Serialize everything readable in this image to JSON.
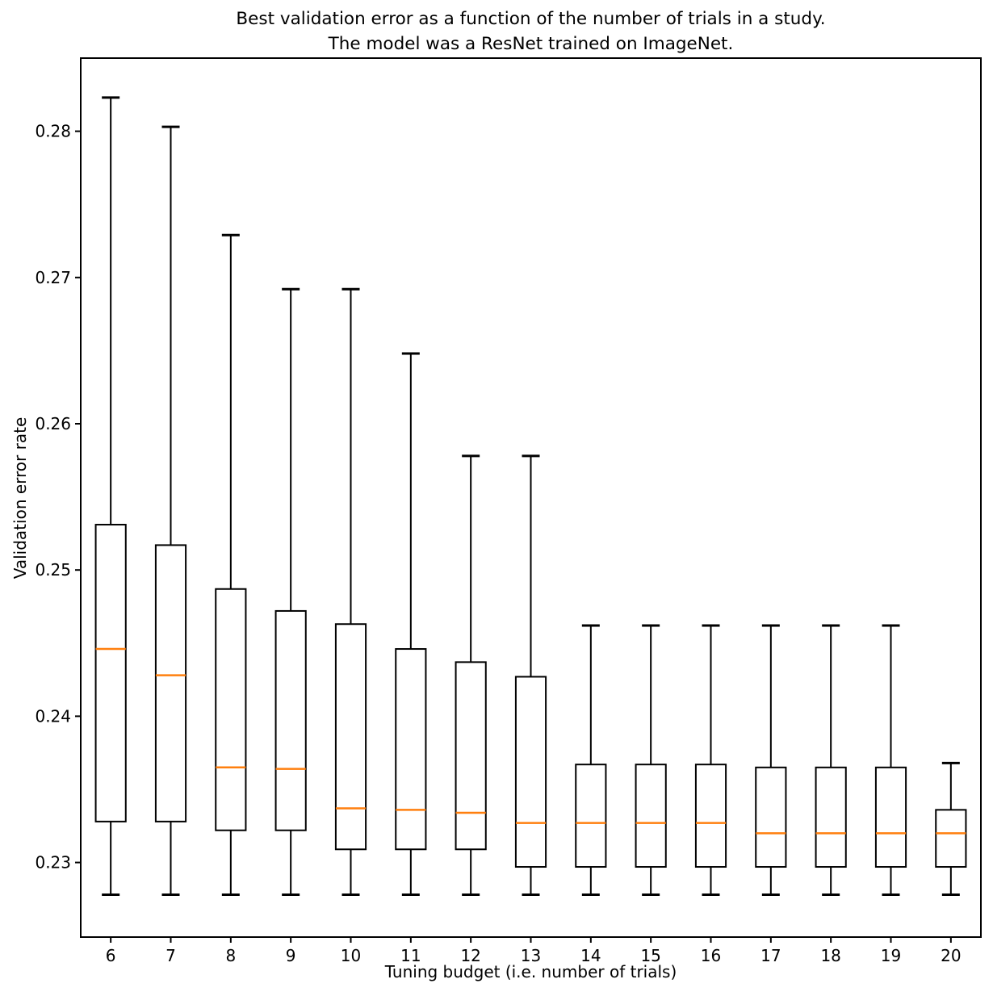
{
  "chart_data": {
    "type": "boxplot",
    "title": "Best validation error as a function of the number of trials in a study. The model was a ResNet trained on ImageNet.",
    "title_lines": [
      "Best validation error as a function of the number of trials in a study.",
      "The model was a ResNet trained on ImageNet."
    ],
    "xlabel": "Tuning budget (i.e. number of trials)",
    "ylabel": "Validation error rate",
    "categories": [
      6,
      7,
      8,
      9,
      10,
      11,
      12,
      13,
      14,
      15,
      16,
      17,
      18,
      19,
      20
    ],
    "ytick_labels": [
      "0.23",
      "0.24",
      "0.25",
      "0.26",
      "0.27",
      "0.28"
    ],
    "yticks": [
      0.23,
      0.24,
      0.25,
      0.26,
      0.27,
      0.28
    ],
    "xlim": [
      5.5,
      20.5
    ],
    "ylim": [
      0.2249,
      0.285
    ],
    "grid": false,
    "legend": "none",
    "box_line_color": "#000000",
    "median_color": "#ff7f0e",
    "boxes": [
      {
        "trial": 6,
        "whisker_low": 0.2278,
        "q1": 0.2328,
        "median": 0.2446,
        "q3": 0.2531,
        "whisker_high": 0.2823
      },
      {
        "trial": 7,
        "whisker_low": 0.2278,
        "q1": 0.2328,
        "median": 0.2428,
        "q3": 0.2517,
        "whisker_high": 0.2803
      },
      {
        "trial": 8,
        "whisker_low": 0.2278,
        "q1": 0.2322,
        "median": 0.2365,
        "q3": 0.2487,
        "whisker_high": 0.2729
      },
      {
        "trial": 9,
        "whisker_low": 0.2278,
        "q1": 0.2322,
        "median": 0.2364,
        "q3": 0.2472,
        "whisker_high": 0.2692
      },
      {
        "trial": 10,
        "whisker_low": 0.2278,
        "q1": 0.2309,
        "median": 0.2337,
        "q3": 0.2463,
        "whisker_high": 0.2692
      },
      {
        "trial": 11,
        "whisker_low": 0.2278,
        "q1": 0.2309,
        "median": 0.2336,
        "q3": 0.2446,
        "whisker_high": 0.2648
      },
      {
        "trial": 12,
        "whisker_low": 0.2278,
        "q1": 0.2309,
        "median": 0.2334,
        "q3": 0.2437,
        "whisker_high": 0.2578
      },
      {
        "trial": 13,
        "whisker_low": 0.2278,
        "q1": 0.2297,
        "median": 0.2327,
        "q3": 0.2427,
        "whisker_high": 0.2578
      },
      {
        "trial": 14,
        "whisker_low": 0.2278,
        "q1": 0.2297,
        "median": 0.2327,
        "q3": 0.2367,
        "whisker_high": 0.2462
      },
      {
        "trial": 15,
        "whisker_low": 0.2278,
        "q1": 0.2297,
        "median": 0.2327,
        "q3": 0.2367,
        "whisker_high": 0.2462
      },
      {
        "trial": 16,
        "whisker_low": 0.2278,
        "q1": 0.2297,
        "median": 0.2327,
        "q3": 0.2367,
        "whisker_high": 0.2462
      },
      {
        "trial": 17,
        "whisker_low": 0.2278,
        "q1": 0.2297,
        "median": 0.232,
        "q3": 0.2365,
        "whisker_high": 0.2462
      },
      {
        "trial": 18,
        "whisker_low": 0.2278,
        "q1": 0.2297,
        "median": 0.232,
        "q3": 0.2365,
        "whisker_high": 0.2462
      },
      {
        "trial": 19,
        "whisker_low": 0.2278,
        "q1": 0.2297,
        "median": 0.232,
        "q3": 0.2365,
        "whisker_high": 0.2462
      },
      {
        "trial": 20,
        "whisker_low": 0.2278,
        "q1": 0.2297,
        "median": 0.232,
        "q3": 0.2336,
        "whisker_high": 0.2368
      }
    ]
  }
}
